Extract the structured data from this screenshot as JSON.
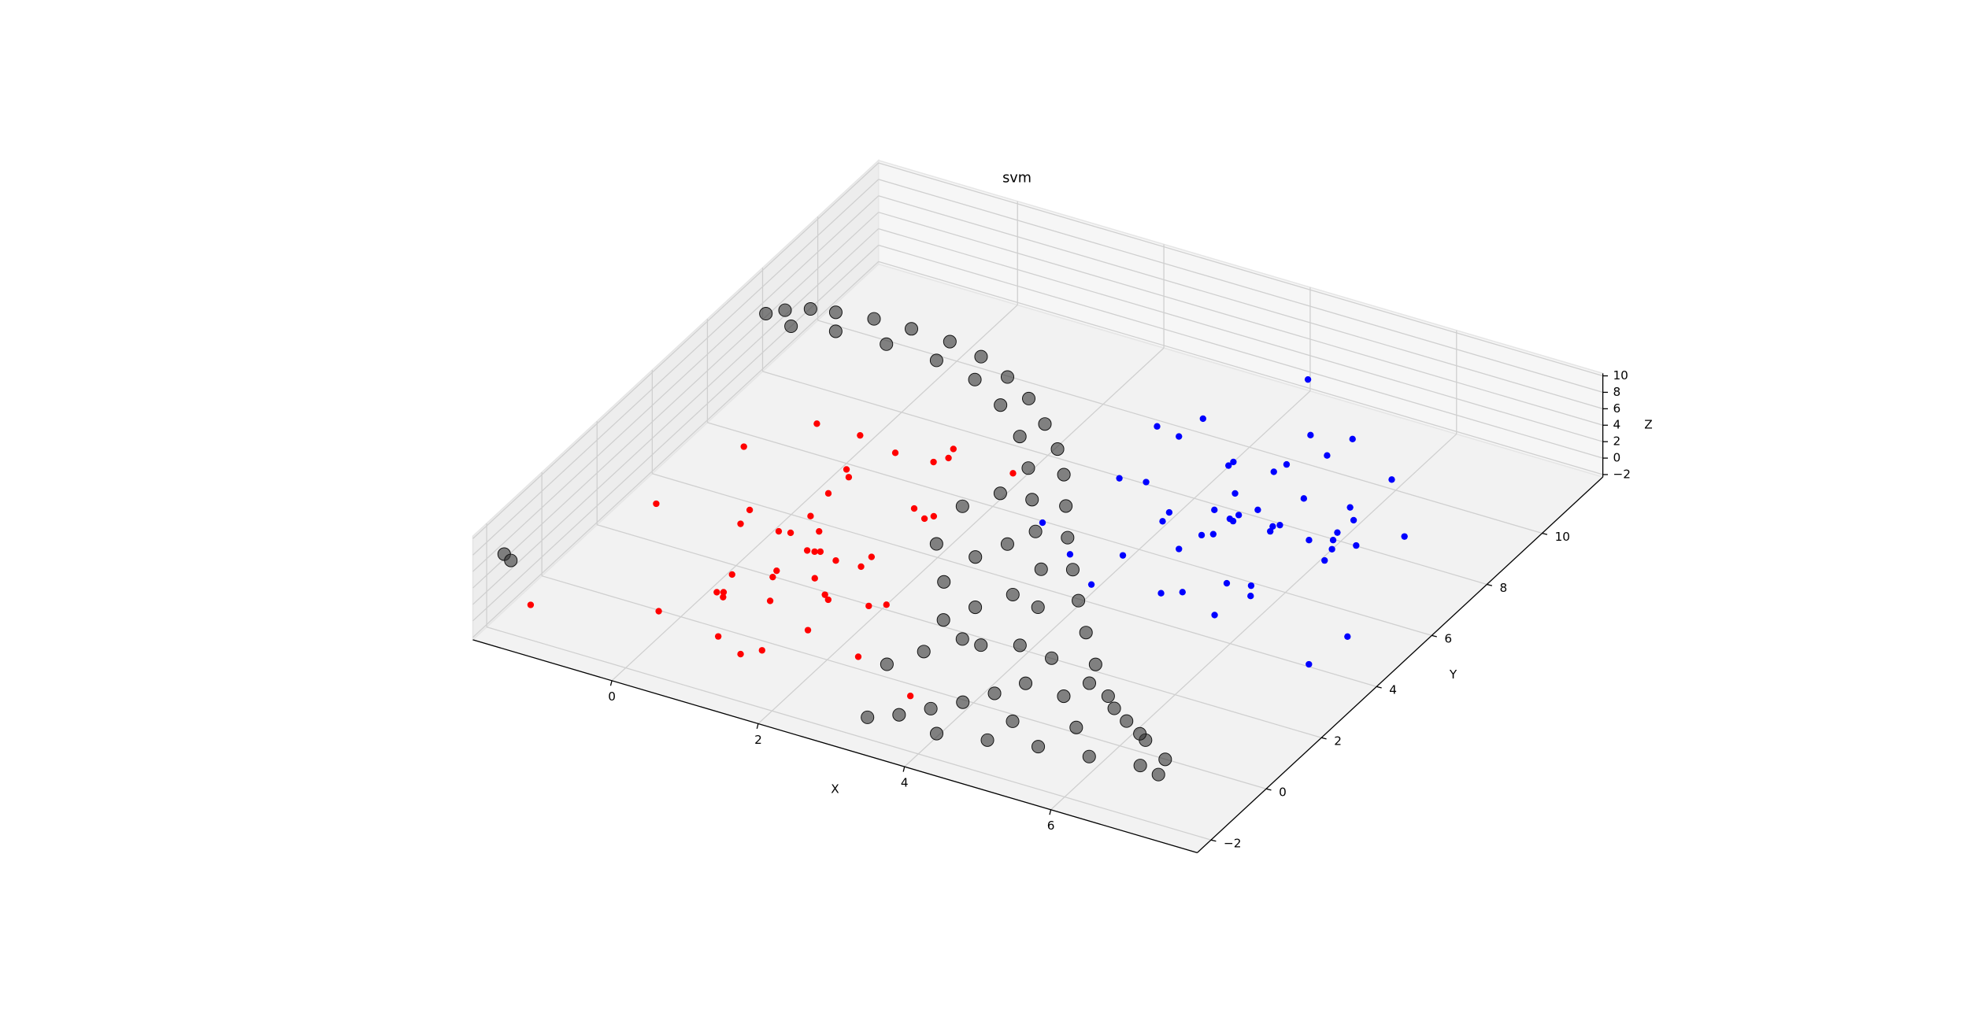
{
  "chart_data": {
    "type": "scatter3d",
    "title": "svm",
    "x_label": "X",
    "y_label": "Y",
    "z_label": "Z",
    "xlim": [
      -1.9,
      8
    ],
    "ylim": [
      -2.5,
      12.2
    ],
    "zlim": [
      -2.3,
      10.3
    ],
    "xticks": [
      0,
      2,
      4,
      6
    ],
    "yticks": [
      {
        "value": -2,
        "label": "−2"
      },
      0,
      2,
      4,
      6,
      8,
      10
    ],
    "zticks": [
      {
        "value": -2,
        "label": "−2"
      },
      0,
      2,
      4,
      6,
      8,
      10
    ],
    "grid": true,
    "series": [
      {
        "color": "#ff0000",
        "x": [
          -0.54,
          0.04,
          -1.04,
          0.6,
          1.16,
          1.21,
          1.1,
          0.28,
          0.39,
          2.05,
          0.36,
          -1.31,
          -0.27,
          -0.21,
          1.42,
          1.71,
          1.64,
          0.43,
          0.27,
          0.41,
          0.69,
          0.78,
          0.87,
          0.93,
          1.19,
          1.52,
          1.52,
          0.69,
          0.27,
          0.72,
          1.17,
          0.31,
          0.38,
          0.43,
          1.46,
          1.55,
          0.96,
          2.21,
          2.04,
          -0.08,
          -1.48,
          1.68,
          0.82,
          1.43,
          1.25,
          2.5,
          3.48
        ],
        "y": [
          6.36,
          6.39,
          5.04,
          6.18,
          6.8,
          6.49,
          6.24,
          5.26,
          5.05,
          6.6,
          4.39,
          2.58,
          3.21,
          2.72,
          4.69,
          4.63,
          4.48,
          3.56,
          2.83,
          2.89,
          3.18,
          2.51,
          2.54,
          2.59,
          2.46,
          2.88,
          2.5,
          1.64,
          1.14,
          1.42,
          1.75,
          0.48,
          0.54,
          0.39,
          1.35,
          1.23,
          0.69,
          1.59,
          1.4,
          -0.59,
          -1.52,
          0.15,
          -0.82,
          -0.85,
          -1.15,
          -0.2,
          -0.91
        ],
        "z": [
          0,
          0,
          0,
          0,
          0,
          0,
          0,
          0,
          0,
          0,
          0,
          0,
          0,
          0,
          0,
          0,
          0,
          0,
          0,
          0,
          0,
          0,
          0,
          0,
          0,
          0,
          0,
          0,
          0,
          0,
          0,
          0,
          0,
          0,
          0,
          0,
          0,
          0,
          0,
          0,
          0,
          0,
          0,
          0,
          0,
          0,
          0
        ]
      },
      {
        "color": "#0000ff",
        "x": [
          4.06,
          3.41,
          3.02,
          3.36,
          4.71,
          5.19,
          5.11,
          4.21,
          4.2,
          4.79,
          4.74,
          3.21,
          3.53,
          6.05,
          4.58,
          5.35,
          4.55,
          5.0,
          5.93,
          4.11,
          4.14,
          4.86,
          4.81,
          4.87,
          6.11,
          5.34,
          5.4,
          5.37,
          4.7,
          4.81,
          6.08,
          5.87,
          6.12,
          6.82,
          6.42,
          6.21,
          4.62,
          3.55,
          4.11,
          6.26,
          2.91,
          4.11,
          5.5,
          5.78,
          4.93,
          5.14,
          5.89,
          5.73,
          7.35,
          7.26
        ],
        "y": [
          11.96,
          9.88,
          9.25,
          9.14,
          10.33,
          10.58,
          9.87,
          8.86,
          8.71,
          9.25,
          8.92,
          7.38,
          7.5,
          9.72,
          7.94,
          8.39,
          7.27,
          7.65,
          8.53,
          6.8,
          6.48,
          7.33,
          7.14,
          7.1,
          8.18,
          7.29,
          7.39,
          7.12,
          6.41,
          6.54,
          7.67,
          7.2,
          7.41,
          8.14,
          7.45,
          7.13,
          5.8,
          4.69,
          5.12,
          6.73,
          5.39,
          3.98,
          5.2,
          5.34,
          4.33,
          4.55,
          5.03,
          4.15,
          4.67,
          3.51
        ],
        "z": [
          0,
          0,
          0,
          0,
          0,
          0,
          0,
          0,
          0,
          0,
          0,
          0,
          0,
          0,
          0,
          0,
          0,
          0,
          0,
          0,
          0,
          0,
          0,
          0,
          0,
          0,
          0,
          0,
          0,
          0,
          0,
          0,
          0,
          0,
          0,
          0,
          0,
          0,
          0,
          0,
          0,
          0,
          0,
          0,
          0,
          0,
          0,
          0,
          0,
          0
        ]
      },
      {
        "color": "#333333",
        "x": [
          -1.38,
          -1.22,
          -0.97,
          -0.67,
          -0.2,
          0.3,
          0.75,
          1.15,
          1.56,
          1.93,
          2.29,
          2.61,
          2.87,
          3.15,
          3.43,
          3.75,
          4.11,
          4.5,
          4.91,
          5.35,
          5.82,
          6.23,
          6.65,
          6.75,
          -1.07,
          -0.55,
          0.12,
          0.73,
          1.25,
          1.71,
          2.17,
          2.52,
          2.82,
          3.12,
          3.51,
          2.14,
          2.55,
          2.88,
          2.08,
          2.69,
          3.16,
          3.55,
          2.42,
          2.97,
          3.5,
          4.05,
          3.81,
          4.43,
          4.89,
          3.09,
          3.39,
          3.65,
          3.91,
          4.14,
          4.35,
          2.79,
          3.03,
          3.29,
          3.99,
          4.59,
          5.19,
          5.83,
          6.46,
          4.64,
          5.37,
          5.55,
          5.01,
          6.1,
          -1.77,
          -1.63
        ],
        "y": [
          6.74,
          7.01,
          7.27,
          7.39,
          7.53,
          7.56,
          7.76,
          7.83,
          7.7,
          7.49,
          7.12,
          6.73,
          6.27,
          5.6,
          4.92,
          4.26,
          3.51,
          2.75,
          2.01,
          1.3,
          0.72,
          0.32,
          -0.08,
          -0.59,
          6.83,
          7.07,
          7.13,
          7.33,
          7.34,
          7.05,
          6.53,
          5.91,
          5.25,
          4.58,
          3.75,
          3.59,
          2.77,
          1.88,
          4.69,
          3.54,
          2.29,
          1.46,
          5.16,
          3.96,
          2.75,
          1.55,
          2.84,
          1.69,
          0.91,
          -1.43,
          -1.08,
          -0.62,
          -0.15,
          0.39,
          0.96,
          0.07,
          0.77,
          1.48,
          -1.31,
          -1.06,
          -0.81,
          -0.66,
          -0.48,
          -0.28,
          0.09,
          0.99,
          1.52,
          0.46,
          -1.71,
          -1.84
        ],
        "z": [
          10,
          10,
          10,
          10,
          10,
          10,
          9,
          8,
          7,
          6,
          5,
          4,
          3,
          2,
          1,
          0,
          -0.5,
          -1,
          -1.5,
          -2,
          -2,
          -2,
          -2,
          -2,
          9,
          9,
          9,
          8,
          7,
          6,
          5,
          4,
          3,
          2,
          1,
          1,
          0,
          -1,
          2,
          1,
          0,
          -1,
          3,
          2,
          1,
          0,
          0,
          -1,
          -2,
          -2,
          -2,
          -2,
          -2,
          -2,
          -2,
          -1,
          -1,
          -1,
          -2,
          -2,
          -2,
          -2,
          -2,
          -2,
          -2,
          -2,
          -2,
          -2,
          6,
          6
        ]
      }
    ]
  }
}
